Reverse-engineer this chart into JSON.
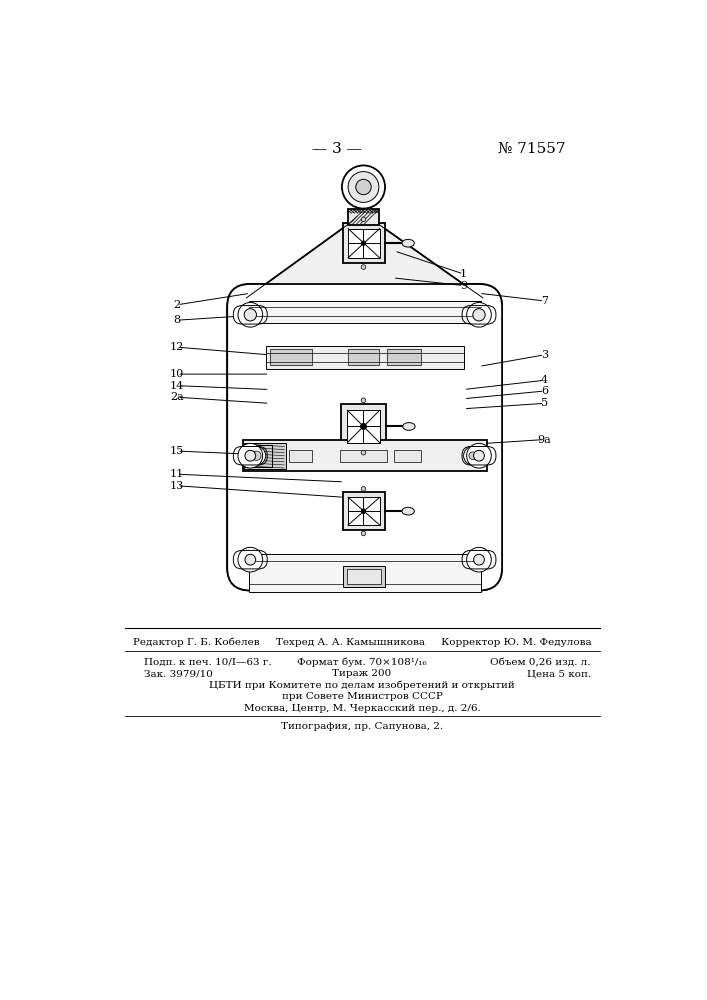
{
  "page_number": "— 3 —",
  "patent_number": "№ 71557",
  "bg_color": "#ffffff",
  "footer_line1": "Редактор Г. Б. Кобелев     Техред А. А. Камышникова     Корректор Ю. М. Федулова",
  "footer_line2_col1": "Подп. к печ. 10/I—63 г.",
  "footer_line2_col2": "Формат бум. 70×108¹/₁₆",
  "footer_line2_col3": "Объем 0,26 изд. л.",
  "footer_line3_col1": "Зак. 3979/10",
  "footer_line3_col2": "Тираж 200",
  "footer_line3_col3": "Цена 5 коп.",
  "footer_line4": "ЦБТИ при Комитете по делам изобретений и открытий",
  "footer_line5": "при Совете Министров СССР",
  "footer_line6": "Москва, Центр, М. Черкасский пер., д. 2/6.",
  "footer_line7": "Типография, пр. Сапунова, 2."
}
